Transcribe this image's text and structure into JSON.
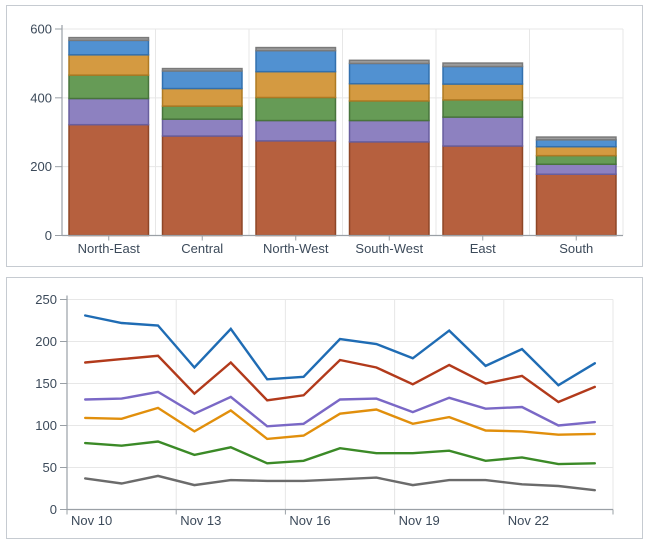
{
  "page": {
    "background": "#ffffff",
    "panel_border": "#c6cbd1"
  },
  "axis": {
    "text_color": "#3c4a5a",
    "line_color": "#9aa0a6",
    "grid_color": "#e7e7e7",
    "tick_color": "#9aa0a6"
  },
  "chart_data": [
    {
      "type": "bar",
      "stacked": true,
      "title": "",
      "xlabel": "",
      "ylabel": "",
      "categories": [
        "North-East",
        "Central",
        "North-West",
        "South-West",
        "East",
        "South"
      ],
      "series": [
        {
          "name": "series-brown",
          "color": "#b6603e",
          "border": "#8e4626",
          "values": [
            322,
            289,
            275,
            272,
            260,
            178
          ]
        },
        {
          "name": "series-purple",
          "color": "#8d81c0",
          "border": "#685e9e",
          "values": [
            76,
            49,
            59,
            62,
            84,
            29
          ]
        },
        {
          "name": "series-green",
          "color": "#669b56",
          "border": "#48743c",
          "values": [
            68,
            38,
            67,
            57,
            50,
            25
          ]
        },
        {
          "name": "series-orange",
          "color": "#d49a41",
          "border": "#ae7a23",
          "values": [
            59,
            51,
            75,
            50,
            46,
            26
          ]
        },
        {
          "name": "series-blue",
          "color": "#5191d1",
          "border": "#3270ae",
          "values": [
            42,
            51,
            61,
            59,
            51,
            20
          ]
        },
        {
          "name": "series-gray",
          "color": "#9c9c9c",
          "border": "#7a7a7a",
          "values": [
            8,
            7,
            9,
            9,
            10,
            8
          ]
        }
      ],
      "ylim": [
        0,
        600
      ],
      "yticks": [
        0,
        200,
        400,
        600
      ],
      "grid": true,
      "legend": "none"
    },
    {
      "type": "line",
      "title": "",
      "xlabel": "",
      "ylabel": "",
      "x_tick_labels": [
        "Nov 10",
        "Nov 13",
        "Nov 16",
        "Nov 19",
        "Nov 22"
      ],
      "label_every_n_points": 3,
      "n_points": 15,
      "series": [
        {
          "name": "line-blue",
          "color": "#1f6cb4",
          "values": [
            231,
            222,
            219,
            169,
            215,
            155,
            158,
            203,
            197,
            180,
            213,
            171,
            191,
            148,
            174
          ]
        },
        {
          "name": "line-red",
          "color": "#b23a1b",
          "values": [
            175,
            179,
            183,
            138,
            175,
            130,
            136,
            178,
            169,
            149,
            172,
            150,
            159,
            128,
            146
          ]
        },
        {
          "name": "line-purple",
          "color": "#7a68c6",
          "values": [
            131,
            132,
            140,
            114,
            134,
            99,
            102,
            131,
            132,
            116,
            133,
            120,
            122,
            100,
            104
          ]
        },
        {
          "name": "line-orange",
          "color": "#e18f0c",
          "values": [
            109,
            108,
            121,
            93,
            118,
            84,
            88,
            114,
            119,
            102,
            110,
            94,
            93,
            89,
            90
          ]
        },
        {
          "name": "line-green",
          "color": "#3b8a27",
          "values": [
            79,
            76,
            81,
            65,
            74,
            55,
            58,
            73,
            67,
            67,
            70,
            58,
            62,
            54,
            55
          ]
        },
        {
          "name": "line-gray",
          "color": "#6b6b6b",
          "values": [
            37,
            31,
            40,
            29,
            35,
            34,
            34,
            36,
            38,
            29,
            35,
            35,
            30,
            28,
            23
          ]
        }
      ],
      "ylim": [
        0,
        250
      ],
      "yticks": [
        0,
        50,
        100,
        150,
        200,
        250
      ],
      "grid": true,
      "legend": "none"
    }
  ]
}
